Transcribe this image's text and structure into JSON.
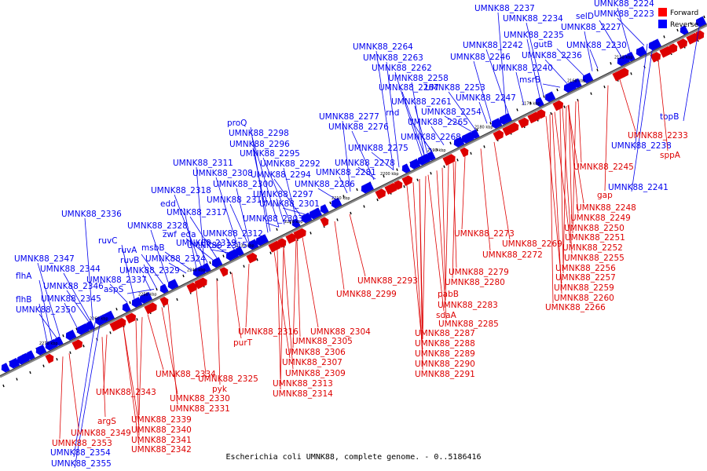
{
  "caption": "Escherichia coli UMNK88, complete genome. - 0..5186416",
  "legend": [
    {
      "label": "Forward",
      "color": "#ff0000"
    },
    {
      "label": "Reverse",
      "color": "#0000ff"
    }
  ],
  "colors": {
    "forward": "#dd0000",
    "reverse": "#0000ee",
    "backbone": "#666666"
  },
  "kbp_ticks": [
    "2150 kbp",
    "2160 kbp",
    "2170 kbp",
    "2180 kbp",
    "2190 kbp",
    "2200 kbp",
    "2210 kbp",
    "2220 kbp",
    "2230 kbp",
    "2240 kbp",
    "2250 kbp",
    "2260 kbp",
    "2270 kbp"
  ],
  "reverse_labels": [
    "UMNK88_2237",
    "UMNK88_2224",
    "UMNK88_2234",
    "selD",
    "UMNK88_2223",
    "UMNK88_2227",
    "UMNK88_2235",
    "UMNK88_2264",
    "UMNK88_2242",
    "gutB",
    "UMNK88_2230",
    "UMNK88_2263",
    "UMNK88_2246",
    "UMNK88_2236",
    "UMNK88_2262",
    "UMNK88_2240",
    "UMNK88_2258",
    "msrB",
    "UMNK88_2267",
    "UMNK88_2253",
    "UMNK88_2247",
    "UMNK88_2261",
    "topB",
    "rnd",
    "UMNK88_2254",
    "UMNK88_2277",
    "UMNK88_2265",
    "proQ",
    "UMNK88_2276",
    "UMNK88_2298",
    "UMNK88_2268",
    "UMNK88_2238",
    "UMNK88_2296",
    "UMNK88_2275",
    "UMNK88_2295",
    "UMNK88_2311",
    "UMNK88_2292",
    "UMNK88_2278",
    "UMNK88_2308",
    "UMNK88_2294",
    "UMNK88_2281",
    "UMNK88_2300",
    "UMNK88_2286",
    "UMNK88_2241",
    "UMNK88_2318",
    "UMNK88_2297",
    "edd",
    "UMNK88_2310",
    "UMNK88_2301",
    "UMNK88_2317",
    "UMNK88_2336",
    "UMNK88_2303",
    "UMNK88_2328",
    "eda",
    "zwf",
    "UMNK88_2312",
    "ruvC",
    "UMNK88_2315",
    "ruvA",
    "msbB",
    "UMNK88_2319",
    "ruvB",
    "UMNK88_2324",
    "UMNK88_2347",
    "UMNK88_2344",
    "UMNK88_2329",
    "flhA",
    "UMNK88_2337",
    "UMNK88_2346",
    "aspS",
    "flhB",
    "UMNK88_2345",
    "UMNK88_2350",
    "UMNK88_2354",
    "UMNK88_2355"
  ],
  "forward_labels": [
    "UMNK88_2233",
    "sppA",
    "UMNK88_2245",
    "gap",
    "UMNK88_2248",
    "UMNK88_2249",
    "UMNK88_2250",
    "UMNK88_2251",
    "UMNK88_2252",
    "UMNK88_2255",
    "UMNK88_2256",
    "UMNK88_2257",
    "UMNK88_2259",
    "UMNK88_2260",
    "UMNK88_2266",
    "UMNK88_2273",
    "UMNK88_2269",
    "UMNK88_2272",
    "UMNK88_2279",
    "UMNK88_2280",
    "UMNK88_2293",
    "UMNK88_2299",
    "pabB",
    "UMNK88_2283",
    "sdaA",
    "UMNK88_2285",
    "UMNK88_2287",
    "UMNK88_2288",
    "UMNK88_2289",
    "UMNK88_2290",
    "UMNK88_2291",
    "UMNK88_2316",
    "UMNK88_2304",
    "purT",
    "UMNK88_2305",
    "UMNK88_2306",
    "UMNK88_2307",
    "UMNK88_2309",
    "UMNK88_2313",
    "UMNK88_2314",
    "UMNK88_2334",
    "UMNK88_2325",
    "pyk",
    "UMNK88_2343",
    "UMNK88_2330",
    "UMNK88_2331",
    "argS",
    "UMNK88_2339",
    "UMNK88_2340",
    "UMNK88_2349",
    "UMNK88_2341",
    "UMNK88_2353",
    "UMNK88_2342"
  ]
}
